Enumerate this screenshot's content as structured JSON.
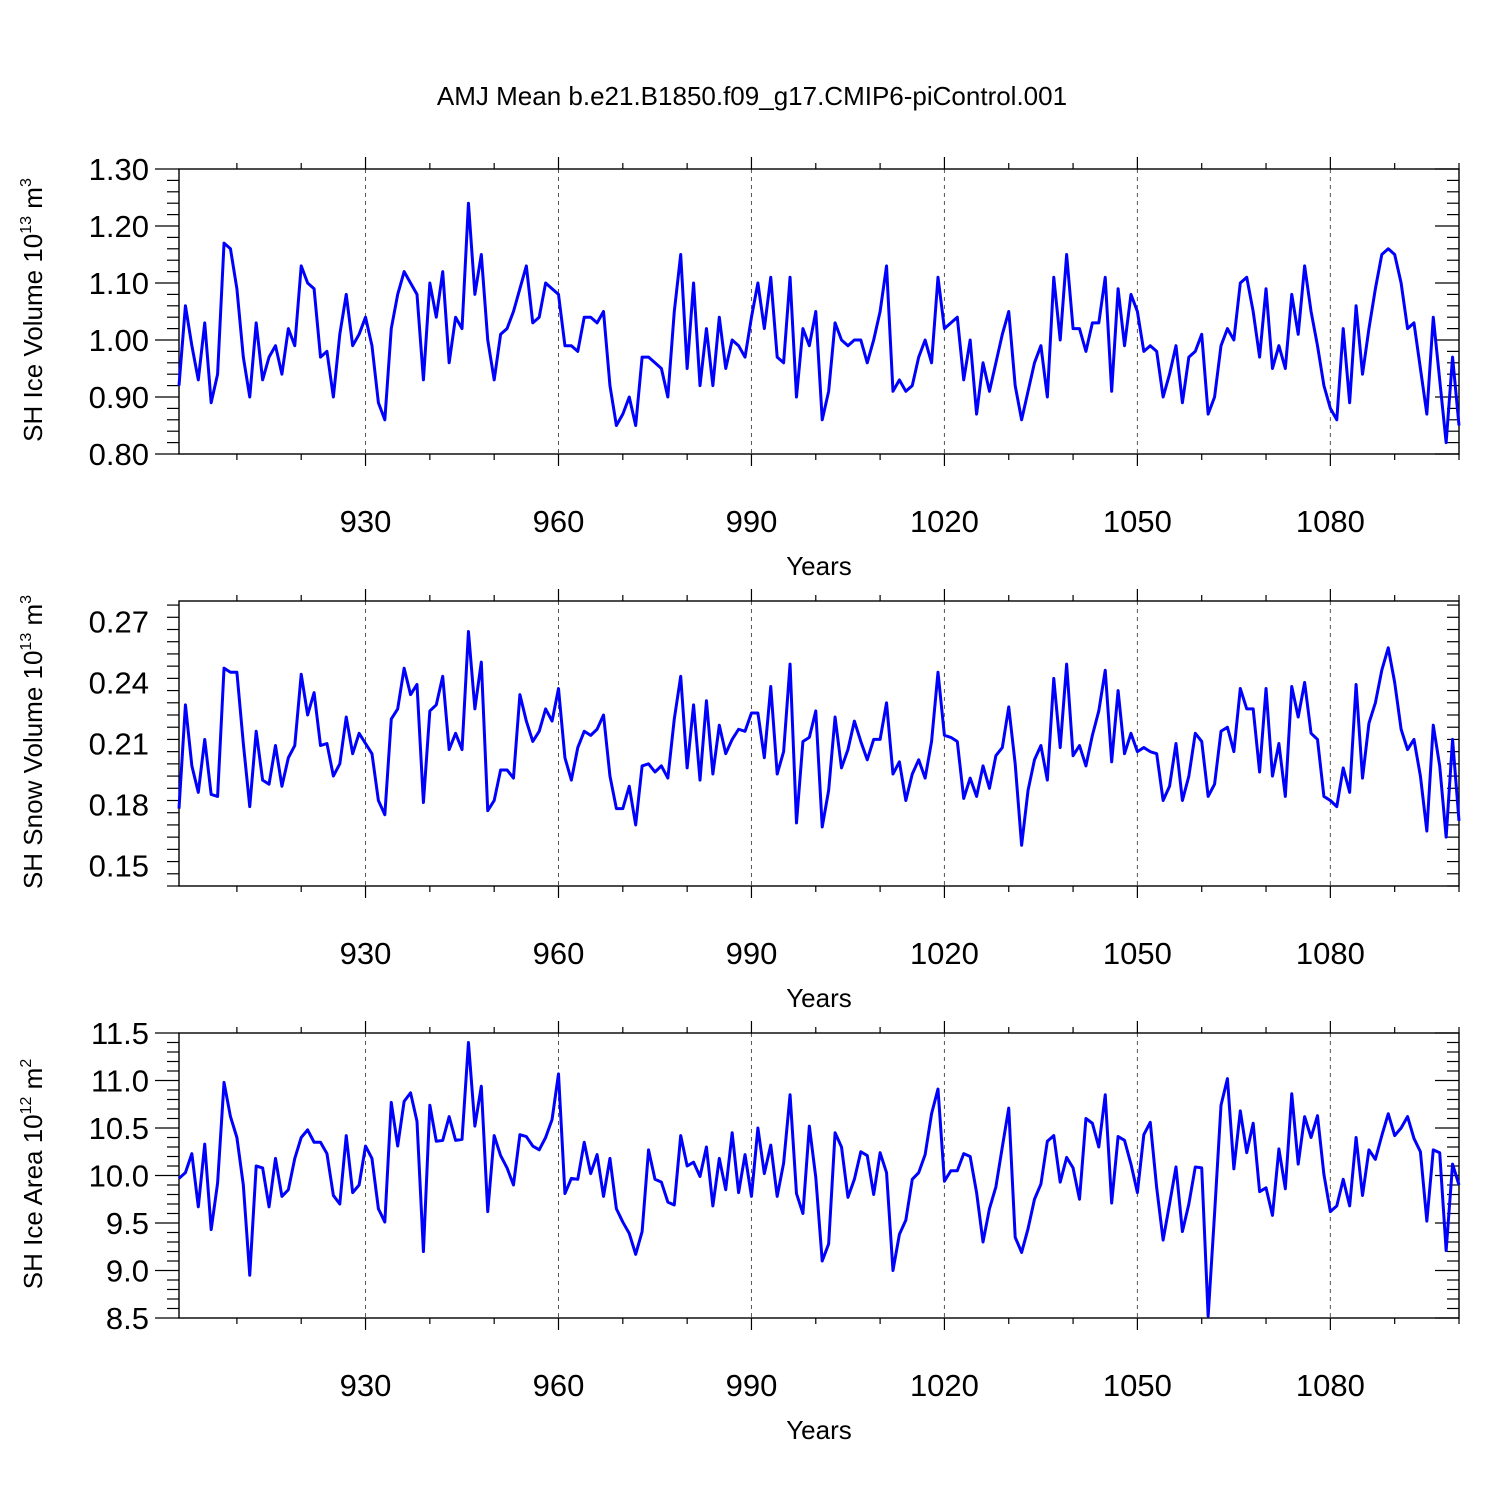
{
  "title": "AMJ Mean b.e21.B1850.f09_g17.CMIP6-piControl.001",
  "colors": {
    "line": "#0000ff",
    "frame": "#000000"
  },
  "chart_data": [
    {
      "type": "line",
      "ylabel": {
        "main": "SH Ice Volume 10",
        "sup": "13",
        "unit": " m",
        "unit_sup": "3"
      },
      "xlabel": "Years",
      "xlim": [
        901,
        1100
      ],
      "ylim": [
        0.8,
        1.3
      ],
      "yticks": [
        "0.80",
        "0.90",
        "1.00",
        "1.10",
        "1.20",
        "1.30"
      ],
      "xticks": [
        "930",
        "960",
        "990",
        "1020",
        "1050",
        "1080"
      ],
      "grid": "vertical dashed at x ticks",
      "series": [
        {
          "x_start": 901,
          "values": [
            0.92,
            1.06,
            0.99,
            0.93,
            1.03,
            0.89,
            0.94,
            1.17,
            1.16,
            1.09,
            0.97,
            0.9,
            1.03,
            0.93,
            0.97,
            0.99,
            0.94,
            1.02,
            0.99,
            1.13,
            1.1,
            1.09,
            0.97,
            0.98,
            0.9,
            1.01,
            1.08,
            0.99,
            1.01,
            1.04,
            0.99,
            0.89,
            0.86,
            1.02,
            1.08,
            1.12,
            1.1,
            1.08,
            0.93,
            1.1,
            1.04,
            1.12,
            0.96,
            1.04,
            1.02,
            1.24,
            1.08,
            1.15,
            1.0,
            0.93,
            1.01,
            1.02,
            1.05,
            1.09,
            1.13,
            1.03,
            1.04,
            1.1,
            1.09,
            1.08,
            0.99,
            0.99,
            0.98,
            1.04,
            1.04,
            1.03,
            1.05,
            0.92,
            0.85,
            0.87,
            0.9,
            0.85,
            0.97,
            0.97,
            0.96,
            0.95,
            0.9,
            1.05,
            1.15,
            0.95,
            1.1,
            0.92,
            1.02,
            0.92,
            1.04,
            0.95,
            1.0,
            0.99,
            0.97,
            1.04,
            1.1,
            1.02,
            1.11,
            0.97,
            0.96,
            1.11,
            0.9,
            1.02,
            0.99,
            1.05,
            0.86,
            0.91,
            1.03,
            1.0,
            0.99,
            1.0,
            1.0,
            0.96,
            1.0,
            1.05,
            1.13,
            0.91,
            0.93,
            0.91,
            0.92,
            0.97,
            1.0,
            0.96,
            1.11,
            1.02,
            1.03,
            1.04,
            0.93,
            1.0,
            0.87,
            0.96,
            0.91,
            0.96,
            1.01,
            1.05,
            0.92,
            0.86,
            0.91,
            0.96,
            0.99,
            0.9,
            1.11,
            1.0,
            1.15,
            1.02,
            1.02,
            0.98,
            1.03,
            1.03,
            1.11,
            0.91,
            1.09,
            0.99,
            1.08,
            1.05,
            0.98,
            0.99,
            0.98,
            0.9,
            0.94,
            0.99,
            0.89,
            0.97,
            0.98,
            1.01,
            0.87,
            0.9,
            0.99,
            1.02,
            1.0,
            1.1,
            1.11,
            1.05,
            0.97,
            1.09,
            0.95,
            0.99,
            0.95,
            1.08,
            1.01,
            1.13,
            1.05,
            0.99,
            0.92,
            0.88,
            0.86,
            1.02,
            0.89,
            1.06,
            0.94,
            1.02,
            1.09,
            1.15,
            1.16,
            1.15,
            1.1,
            1.02,
            1.03,
            0.95,
            0.87,
            1.04,
            0.93,
            0.82,
            0.97,
            0.85
          ]
        }
      ]
    },
    {
      "type": "line",
      "ylabel": {
        "main": "SH Snow Volume 10",
        "sup": "13",
        "unit": " m",
        "unit_sup": "3"
      },
      "xlabel": "Years",
      "xlim": [
        901,
        1100
      ],
      "ylim": [
        0.14,
        0.28
      ],
      "yticks": [
        "0.15",
        "0.18",
        "0.21",
        "0.24",
        "0.27"
      ],
      "xticks": [
        "930",
        "960",
        "990",
        "1020",
        "1050",
        "1080"
      ],
      "grid": "vertical dashed at x ticks",
      "series": [
        {
          "x_start": 901,
          "values": [
            0.178,
            0.229,
            0.199,
            0.186,
            0.212,
            0.185,
            0.184,
            0.247,
            0.245,
            0.245,
            0.21,
            0.179,
            0.216,
            0.192,
            0.19,
            0.209,
            0.189,
            0.203,
            0.209,
            0.244,
            0.224,
            0.235,
            0.209,
            0.21,
            0.194,
            0.2,
            0.223,
            0.205,
            0.215,
            0.21,
            0.205,
            0.182,
            0.175,
            0.222,
            0.227,
            0.247,
            0.234,
            0.239,
            0.181,
            0.226,
            0.229,
            0.243,
            0.207,
            0.215,
            0.207,
            0.265,
            0.227,
            0.25,
            0.177,
            0.182,
            0.197,
            0.197,
            0.193,
            0.234,
            0.221,
            0.211,
            0.216,
            0.227,
            0.221,
            0.237,
            0.203,
            0.192,
            0.208,
            0.216,
            0.214,
            0.217,
            0.224,
            0.194,
            0.178,
            0.178,
            0.189,
            0.17,
            0.199,
            0.2,
            0.196,
            0.199,
            0.193,
            0.222,
            0.243,
            0.198,
            0.229,
            0.192,
            0.231,
            0.195,
            0.219,
            0.205,
            0.212,
            0.217,
            0.216,
            0.225,
            0.225,
            0.203,
            0.238,
            0.195,
            0.206,
            0.249,
            0.171,
            0.211,
            0.213,
            0.226,
            0.169,
            0.187,
            0.223,
            0.198,
            0.207,
            0.221,
            0.211,
            0.202,
            0.212,
            0.212,
            0.23,
            0.195,
            0.201,
            0.182,
            0.195,
            0.202,
            0.193,
            0.211,
            0.245,
            0.214,
            0.213,
            0.211,
            0.183,
            0.193,
            0.184,
            0.199,
            0.188,
            0.204,
            0.208,
            0.228,
            0.2,
            0.16,
            0.187,
            0.202,
            0.209,
            0.192,
            0.242,
            0.208,
            0.249,
            0.204,
            0.209,
            0.199,
            0.214,
            0.226,
            0.246,
            0.201,
            0.236,
            0.205,
            0.215,
            0.206,
            0.208,
            0.206,
            0.205,
            0.182,
            0.189,
            0.21,
            0.182,
            0.194,
            0.215,
            0.211,
            0.184,
            0.19,
            0.216,
            0.218,
            0.206,
            0.237,
            0.227,
            0.227,
            0.196,
            0.237,
            0.194,
            0.21,
            0.184,
            0.238,
            0.223,
            0.24,
            0.215,
            0.212,
            0.184,
            0.182,
            0.179,
            0.198,
            0.186,
            0.239,
            0.193,
            0.22,
            0.23,
            0.246,
            0.257,
            0.24,
            0.217,
            0.207,
            0.212,
            0.194,
            0.167,
            0.219,
            0.199,
            0.164,
            0.212,
            0.172
          ]
        }
      ]
    },
    {
      "type": "line",
      "ylabel": {
        "main": "SH Ice Area 10",
        "sup": "12",
        "unit": " m",
        "unit_sup": "2"
      },
      "xlabel": "Years",
      "xlim": [
        901,
        1100
      ],
      "ylim": [
        8.5,
        11.5
      ],
      "yticks": [
        "8.5",
        "9.0",
        "9.5",
        "10.0",
        "10.5",
        "11.0",
        "11.5"
      ],
      "xticks": [
        "930",
        "960",
        "990",
        "1020",
        "1050",
        "1080"
      ],
      "grid": "vertical dashed at x ticks",
      "series": [
        {
          "x_start": 901,
          "values": [
            9.97,
            10.03,
            10.23,
            9.67,
            10.33,
            9.43,
            9.92,
            10.98,
            10.62,
            10.4,
            9.9,
            8.95,
            10.1,
            10.08,
            9.67,
            10.18,
            9.78,
            9.85,
            10.18,
            10.4,
            10.48,
            10.35,
            10.35,
            10.23,
            9.79,
            9.7,
            10.42,
            9.82,
            9.9,
            10.31,
            10.18,
            9.65,
            9.51,
            10.77,
            10.31,
            10.78,
            10.87,
            10.57,
            9.2,
            10.74,
            10.36,
            10.37,
            10.62,
            10.37,
            10.38,
            11.4,
            10.52,
            10.94,
            9.62,
            10.42,
            10.21,
            10.08,
            9.9,
            10.43,
            10.41,
            10.31,
            10.27,
            10.4,
            10.59,
            11.07,
            9.81,
            9.97,
            9.96,
            10.35,
            10.02,
            10.22,
            9.78,
            10.18,
            9.65,
            9.51,
            9.39,
            9.17,
            9.41,
            10.27,
            9.96,
            9.93,
            9.72,
            9.69,
            10.42,
            10.1,
            10.14,
            9.99,
            10.3,
            9.68,
            10.18,
            9.85,
            10.45,
            9.82,
            10.22,
            9.78,
            10.5,
            10.02,
            10.32,
            9.78,
            10.13,
            10.85,
            9.81,
            9.6,
            10.52,
            9.98,
            9.1,
            9.28,
            10.45,
            10.3,
            9.77,
            9.96,
            10.25,
            10.21,
            9.8,
            10.24,
            10.03,
            9.0,
            9.38,
            9.53,
            9.96,
            10.03,
            10.22,
            10.65,
            10.91,
            9.94,
            10.05,
            10.05,
            10.23,
            10.2,
            9.82,
            9.3,
            9.65,
            9.88,
            10.3,
            10.71,
            9.35,
            9.19,
            9.44,
            9.75,
            9.91,
            10.36,
            10.42,
            9.93,
            10.19,
            10.08,
            9.75,
            10.6,
            10.55,
            10.3,
            10.85,
            9.71,
            10.41,
            10.37,
            10.12,
            9.82,
            10.43,
            10.56,
            9.87,
            9.32,
            9.7,
            10.09,
            9.41,
            9.7,
            10.09,
            10.08,
            8.52,
            9.6,
            10.74,
            11.02,
            10.07,
            10.68,
            10.24,
            10.55,
            9.83,
            9.87,
            9.58,
            10.28,
            9.86,
            10.86,
            10.12,
            10.62,
            10.4,
            10.63,
            10.01,
            9.62,
            9.68,
            9.96,
            9.68,
            10.4,
            9.79,
            10.27,
            10.17,
            10.42,
            10.65,
            10.42,
            10.5,
            10.62,
            10.39,
            10.25,
            9.52,
            10.27,
            10.24,
            9.21,
            10.12,
            9.9
          ]
        }
      ]
    }
  ]
}
